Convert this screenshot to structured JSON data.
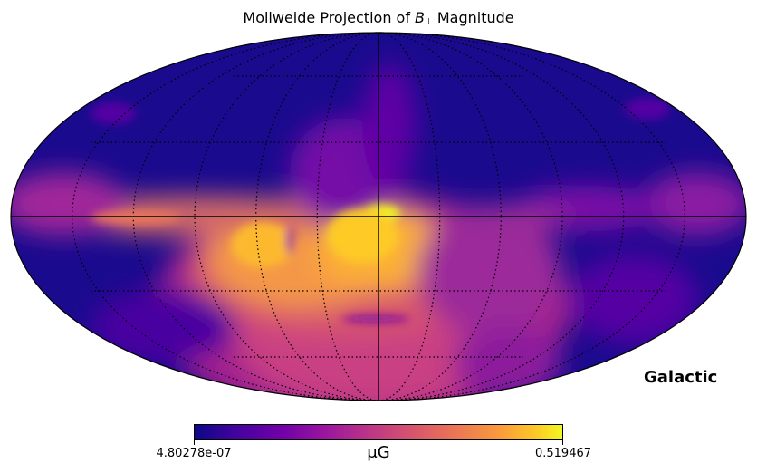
{
  "title": {
    "prefix": "Mollweide Projection of ",
    "symbol": "B",
    "subscript": "⊥",
    "suffix": " Magnitude"
  },
  "coord_system": "Galactic",
  "colorbar": {
    "colormap": "plasma",
    "min_label": "4.80278e-07",
    "max_label": "0.519467",
    "unit_label": "μG",
    "min_value": 4.80278e-07,
    "max_value": 0.519467
  },
  "graticule": {
    "style": "dotted",
    "visible": true
  },
  "colors": {
    "plasma": [
      "#0d0887",
      "#46039f",
      "#7201a8",
      "#9c179e",
      "#bd3786",
      "#d8576b",
      "#ed7953",
      "#fb9f3a",
      "#fdca26",
      "#f0f921"
    ]
  }
}
